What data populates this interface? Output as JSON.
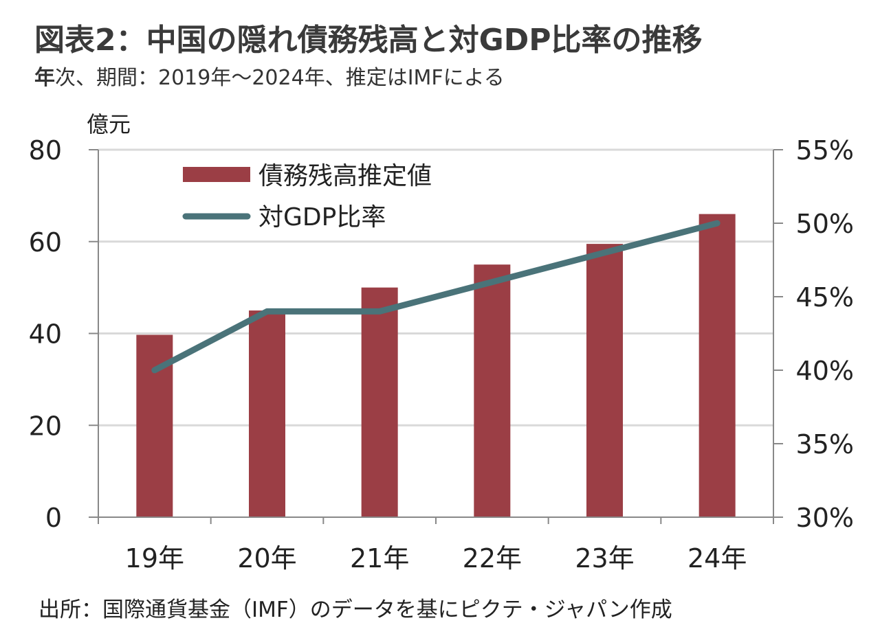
{
  "header": {
    "title": "図表2：中国の隠れ債務残高と対GDP比率の推移",
    "subtitle_bold": "年",
    "subtitle_rest": "次、期間：2019年～2024年、推定はIMFによる"
  },
  "footer": {
    "source": "出所：国際通貨基金（IMF）のデータを基にピクテ・ジャパン作成"
  },
  "chart_data": {
    "type": "bar",
    "categories": [
      "19年",
      "20年",
      "21年",
      "22年",
      "23年",
      "24年"
    ],
    "series": [
      {
        "name": "債務残高推定値",
        "type": "bar",
        "axis": "left",
        "color": "#9b3e45",
        "values": [
          39.7,
          45,
          50,
          55,
          59.5,
          66
        ]
      },
      {
        "name": "対GDP比率",
        "type": "line",
        "axis": "right",
        "color": "#4a7379",
        "values": [
          40,
          44,
          44,
          46,
          48,
          50
        ]
      }
    ],
    "y_left": {
      "unit_label": "億元",
      "ylim": [
        0,
        80
      ],
      "ticks": [
        "0",
        "20",
        "40",
        "60",
        "80"
      ],
      "tick_values": [
        0,
        20,
        40,
        60,
        80
      ]
    },
    "y_right": {
      "ylim": [
        30,
        55
      ],
      "ticks": [
        "30%",
        "35%",
        "40%",
        "45%",
        "50%",
        "55%"
      ],
      "tick_values": [
        30,
        35,
        40,
        45,
        50,
        55
      ]
    },
    "grid": true,
    "legend": "top-left"
  }
}
